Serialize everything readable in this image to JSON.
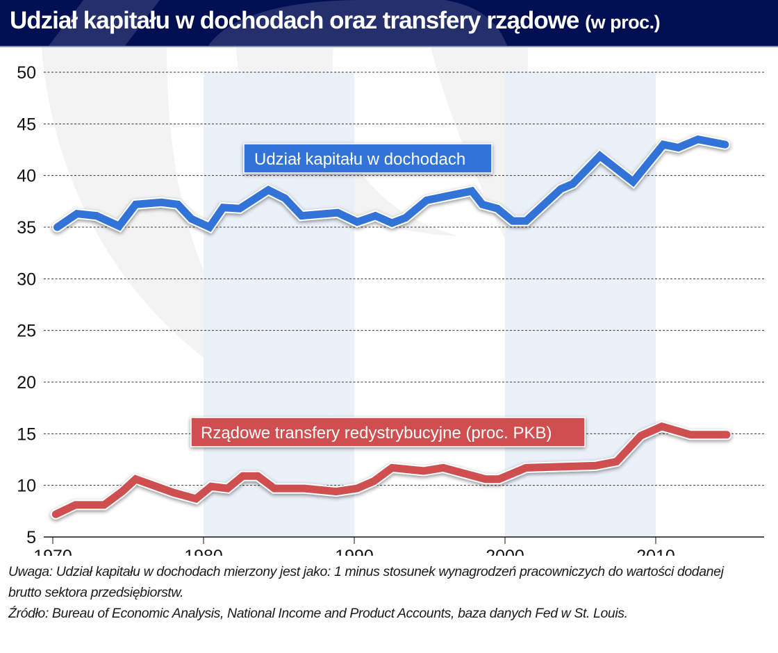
{
  "title": {
    "main": "Udział kapitału w dochodach oraz transfery rządowe",
    "unit": "(w proc.)"
  },
  "colors": {
    "header_bg": "#000f52",
    "capital_series": "#3173d8",
    "transfers_series": "#cf4f51",
    "shade_band": "#e8eef8"
  },
  "notes": {
    "line1": "Uwaga: Udział kapitału w dochodach mierzony jest jako: 1 minus stosunek wynagrodzeń pracowniczych do wartości dodanej",
    "line2": "brutto sektora przedsiębiorstw.",
    "line3": "Źródło: Bureau of Economic Analysis, National Income and Product Accounts, baza danych Fed w St. Louis."
  },
  "chart_data": {
    "type": "line",
    "title": "Udział kapitału w dochodach oraz transfery rządowe (w proc.)",
    "xlabel": "",
    "ylabel": "",
    "xlim": [
      1969.5,
      2017.5
    ],
    "ylim": [
      5,
      50
    ],
    "x_ticks": [
      1970,
      1980,
      1990,
      2000,
      2010
    ],
    "y_ticks": [
      5,
      10,
      15,
      20,
      25,
      30,
      35,
      40,
      45,
      50
    ],
    "grid": "horizontal-dashed",
    "shaded_periods": [
      [
        1980,
        1990
      ],
      [
        2000,
        2010
      ]
    ],
    "series": [
      {
        "name": "Udział kapitału w dochodach",
        "legend_position": "upper-left-center",
        "x": [
          1970.3,
          1971.6,
          1972.9,
          1974.4,
          1975.5,
          1977.2,
          1978.3,
          1979.2,
          1980.4,
          1981.3,
          1982.4,
          1984.3,
          1985.4,
          1986.5,
          1988.9,
          1990.2,
          1991.4,
          1992.5,
          1993.4,
          1994.8,
          1997.8,
          1998.5,
          1999.5,
          2000.5,
          2001.4,
          2003.7,
          2004.5,
          2006.3,
          2008.5,
          2010.5,
          2011.5,
          2012.8,
          2014.6
        ],
        "values": [
          35.0,
          36.3,
          36.1,
          35.1,
          37.2,
          37.4,
          37.2,
          35.8,
          35.0,
          36.9,
          36.8,
          38.6,
          37.8,
          36.1,
          36.4,
          35.5,
          36.1,
          35.4,
          35.9,
          37.6,
          38.5,
          37.2,
          36.8,
          35.6,
          35.6,
          38.7,
          39.2,
          41.9,
          39.4,
          43.0,
          42.7,
          43.5,
          43.0
        ]
      },
      {
        "name": "Rządowe transfery redystrybucyjne (proc. PKB)",
        "legend_position": "lower-center",
        "x": [
          1970.2,
          1971.5,
          1973.4,
          1974.6,
          1975.5,
          1978.0,
          1979.5,
          1980.5,
          1981.6,
          1982.6,
          1983.6,
          1984.7,
          1986.7,
          1988.8,
          1990.2,
          1991.3,
          1992.5,
          1994.6,
          1995.9,
          1998.7,
          1999.6,
          2001.4,
          2006.0,
          2007.4,
          2009.0,
          2010.4,
          2012.3,
          2014.7
        ],
        "values": [
          7.2,
          8.1,
          8.1,
          9.4,
          10.6,
          9.3,
          8.7,
          9.9,
          9.7,
          10.9,
          10.9,
          9.7,
          9.7,
          9.4,
          9.7,
          10.4,
          11.7,
          11.4,
          11.7,
          10.6,
          10.6,
          11.7,
          11.9,
          12.3,
          14.8,
          15.7,
          14.9,
          14.9
        ]
      }
    ]
  }
}
